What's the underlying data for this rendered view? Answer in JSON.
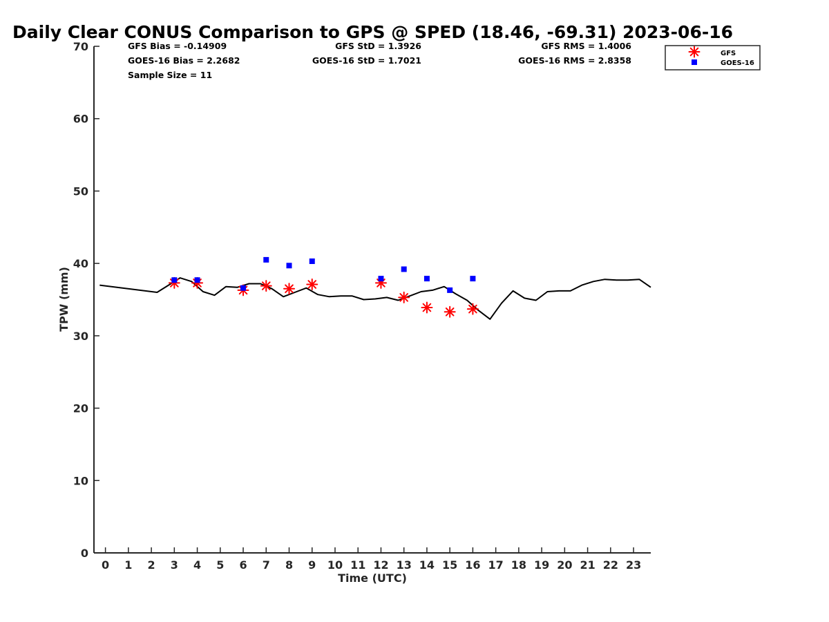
{
  "chart_data": {
    "type": "line",
    "title": "Daily Clear CONUS Comparison to GPS @ SPED (18.46, -69.31) 2023-06-16",
    "xlabel": "Time (UTC)",
    "ylabel": "TPW (mm)",
    "xlim": [
      -0.5,
      23.75
    ],
    "ylim": [
      0,
      70
    ],
    "x_ticks": [
      0,
      1,
      2,
      3,
      4,
      5,
      6,
      7,
      8,
      9,
      10,
      11,
      12,
      13,
      14,
      15,
      16,
      17,
      18,
      19,
      20,
      21,
      22,
      23
    ],
    "y_ticks": [
      0,
      10,
      20,
      30,
      40,
      50,
      60,
      70
    ],
    "grid": false,
    "legend_position": "top-right",
    "stats": {
      "gfs_bias": "GFS Bias = -0.14909",
      "goes_bias": "GOES-16 Bias = 2.2682",
      "sample_size": "Sample Size = 11",
      "gfs_std": "GFS StD = 1.3926",
      "goes_std": "GOES-16 StD = 1.7021",
      "gfs_rms": "GFS RMS = 1.4006",
      "goes_rms": "GOES-16 RMS = 2.8358"
    },
    "gps_line": {
      "x": [
        -0.25,
        2.25,
        2.75,
        3.25,
        3.75,
        4.25,
        4.75,
        5.25,
        5.75,
        6.25,
        6.75,
        7.25,
        7.75,
        8.25,
        8.75,
        9.25,
        9.75,
        10.25,
        10.75,
        11.25,
        11.75,
        12.25,
        12.75,
        13.25,
        13.75,
        14.25,
        14.75,
        15.25,
        15.75,
        16.25,
        16.75,
        17.25,
        17.75,
        18.25,
        18.75,
        19.25,
        19.75,
        20.25,
        20.75,
        21.25,
        21.75,
        22.25,
        22.75,
        23.25,
        23.75
      ],
      "y": [
        37.0,
        36.0,
        37.0,
        38.0,
        37.5,
        36.1,
        35.6,
        36.8,
        36.7,
        37.2,
        37.2,
        36.5,
        35.4,
        36.0,
        36.6,
        35.7,
        35.4,
        35.5,
        35.5,
        35.0,
        35.1,
        35.3,
        34.9,
        35.5,
        36.1,
        36.3,
        36.8,
        35.8,
        34.9,
        33.5,
        32.3,
        34.5,
        36.2,
        35.2,
        34.9,
        36.1,
        36.2,
        36.2,
        37.0,
        37.5,
        37.8,
        37.7,
        37.7,
        37.8,
        36.7
      ]
    },
    "series": [
      {
        "name": "GFS",
        "marker": "asterisk",
        "color": "#ff0000",
        "x": [
          3,
          4,
          6,
          7,
          8,
          9,
          12,
          13,
          14,
          15,
          16
        ],
        "y": [
          37.3,
          37.3,
          36.3,
          36.9,
          36.5,
          37.1,
          37.3,
          35.3,
          33.9,
          33.3,
          33.7
        ]
      },
      {
        "name": "GOES-16",
        "marker": "square",
        "color": "#0000ff",
        "x": [
          3,
          4,
          6,
          7,
          8,
          9,
          12,
          13,
          14,
          15,
          16
        ],
        "y": [
          37.7,
          37.7,
          36.6,
          40.5,
          39.7,
          40.3,
          37.9,
          39.2,
          37.9,
          36.3,
          37.9
        ]
      }
    ]
  }
}
